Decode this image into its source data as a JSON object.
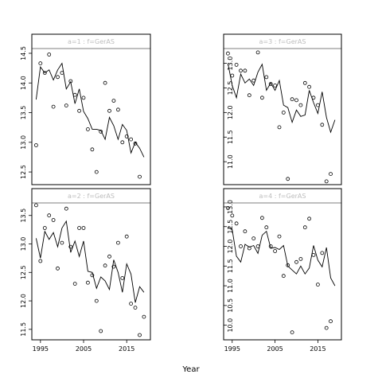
{
  "chart_data": {
    "type": "scatter",
    "xlabel": "Year",
    "x_ticks": [
      1995,
      2005,
      2015
    ],
    "xlim": [
      1993,
      2020.5
    ],
    "panels": [
      {
        "strip_label": "a=1  :  f=GerAS",
        "ylim": [
          12.3,
          14.58
        ],
        "y_ticks": [
          12.5,
          13.0,
          13.5,
          14.0,
          14.5
        ],
        "y_tick_labels": [
          "12.5",
          "13.0",
          "13.5",
          "14.0",
          "14.5"
        ],
        "points": [
          [
            1994,
            12.95
          ],
          [
            1995,
            14.33
          ],
          [
            1996,
            14.17
          ],
          [
            1997,
            14.48
          ],
          [
            1998,
            13.6
          ],
          [
            1999,
            14.1
          ],
          [
            2000,
            14.17
          ],
          [
            2001,
            13.62
          ],
          [
            2002,
            14.03
          ],
          [
            2003,
            13.8
          ],
          [
            2004,
            13.53
          ],
          [
            2005,
            13.75
          ],
          [
            2006,
            13.22
          ],
          [
            2007,
            12.88
          ],
          [
            2008,
            12.5
          ],
          [
            2009,
            13.18
          ],
          [
            2010,
            14.0
          ],
          [
            2011,
            13.53
          ],
          [
            2012,
            13.7
          ],
          [
            2013,
            13.55
          ],
          [
            2014,
            13.0
          ],
          [
            2015,
            13.1
          ],
          [
            2016,
            13.05
          ],
          [
            2017,
            12.98
          ],
          [
            2018,
            12.42
          ]
        ],
        "fitted": [
          [
            1994,
            13.72
          ],
          [
            1995,
            14.27
          ],
          [
            1996,
            14.17
          ],
          [
            1997,
            14.22
          ],
          [
            1998,
            14.05
          ],
          [
            1999,
            14.22
          ],
          [
            2000,
            14.33
          ],
          [
            2001,
            13.9
          ],
          [
            2002,
            14.02
          ],
          [
            2003,
            13.65
          ],
          [
            2004,
            13.9
          ],
          [
            2005,
            13.52
          ],
          [
            2006,
            13.4
          ],
          [
            2007,
            13.22
          ],
          [
            2008,
            13.22
          ],
          [
            2009,
            13.2
          ],
          [
            2010,
            13.05
          ],
          [
            2011,
            13.42
          ],
          [
            2012,
            13.28
          ],
          [
            2013,
            13.05
          ],
          [
            2014,
            13.3
          ],
          [
            2015,
            13.2
          ],
          [
            2016,
            12.82
          ],
          [
            2017,
            13.0
          ],
          [
            2018,
            12.9
          ],
          [
            2019,
            12.75
          ]
        ]
      },
      {
        "strip_label": "a=2  :  f=GerAS",
        "ylim": [
          11.33,
          13.72
        ],
        "y_ticks": [
          11.5,
          12.0,
          12.5,
          13.0,
          13.5
        ],
        "y_tick_labels": [
          "11.5",
          "12.0",
          "12.5",
          "13.0",
          "13.5"
        ],
        "points": [
          [
            1994,
            13.68
          ],
          [
            1995,
            12.7
          ],
          [
            1996,
            13.28
          ],
          [
            1997,
            13.5
          ],
          [
            1998,
            13.42
          ],
          [
            1999,
            12.57
          ],
          [
            2000,
            13.02
          ],
          [
            2001,
            13.62
          ],
          [
            2002,
            12.95
          ],
          [
            2003,
            12.3
          ],
          [
            2004,
            13.28
          ],
          [
            2005,
            13.28
          ],
          [
            2006,
            12.32
          ],
          [
            2007,
            12.45
          ],
          [
            2008,
            12.0
          ],
          [
            2009,
            11.47
          ],
          [
            2010,
            12.62
          ],
          [
            2011,
            12.78
          ],
          [
            2012,
            12.6
          ],
          [
            2013,
            13.02
          ],
          [
            2014,
            12.4
          ],
          [
            2015,
            13.13
          ],
          [
            2016,
            11.95
          ],
          [
            2017,
            11.88
          ],
          [
            2018,
            11.4
          ],
          [
            2019,
            11.72
          ]
        ],
        "fitted": [
          [
            1994,
            13.1
          ],
          [
            1995,
            12.75
          ],
          [
            1996,
            13.22
          ],
          [
            1997,
            13.08
          ],
          [
            1998,
            13.2
          ],
          [
            1999,
            12.95
          ],
          [
            2000,
            13.28
          ],
          [
            2001,
            13.4
          ],
          [
            2002,
            12.85
          ],
          [
            2003,
            13.05
          ],
          [
            2004,
            12.78
          ],
          [
            2005,
            13.05
          ],
          [
            2006,
            12.52
          ],
          [
            2007,
            12.5
          ],
          [
            2008,
            12.22
          ],
          [
            2009,
            12.42
          ],
          [
            2010,
            12.35
          ],
          [
            2011,
            12.2
          ],
          [
            2012,
            12.72
          ],
          [
            2013,
            12.5
          ],
          [
            2014,
            12.15
          ],
          [
            2015,
            12.65
          ],
          [
            2016,
            12.47
          ],
          [
            2017,
            11.97
          ],
          [
            2018,
            12.25
          ],
          [
            2019,
            12.15
          ]
        ]
      },
      {
        "strip_label": "a=3  :  f=GerAS",
        "ylim": [
          10.55,
          13.3
        ],
        "y_ticks": [
          11.0,
          11.5,
          12.0,
          12.5,
          13.0
        ],
        "y_tick_labels": [
          "11.0",
          "11.5",
          "12.0",
          "12.5",
          "13.0"
        ],
        "points": [
          [
            1994,
            13.2
          ],
          [
            1995,
            12.75
          ],
          [
            1996,
            12.97
          ],
          [
            1997,
            12.85
          ],
          [
            1998,
            12.85
          ],
          [
            1999,
            12.35
          ],
          [
            2000,
            12.65
          ],
          [
            2001,
            13.22
          ],
          [
            2002,
            12.3
          ],
          [
            2003,
            12.72
          ],
          [
            2004,
            12.58
          ],
          [
            2005,
            12.55
          ],
          [
            2006,
            11.7
          ],
          [
            2007,
            12.0
          ],
          [
            2008,
            10.65
          ],
          [
            2009,
            12.27
          ],
          [
            2010,
            12.25
          ],
          [
            2011,
            12.15
          ],
          [
            2012,
            12.6
          ],
          [
            2013,
            12.52
          ],
          [
            2014,
            12.3
          ],
          [
            2015,
            12.15
          ],
          [
            2016,
            11.75
          ],
          [
            2017,
            10.6
          ],
          [
            2018,
            10.75
          ]
        ],
        "fitted": [
          [
            1994,
            13.0
          ],
          [
            1995,
            12.55
          ],
          [
            1996,
            12.3
          ],
          [
            1997,
            12.78
          ],
          [
            1998,
            12.6
          ],
          [
            1999,
            12.68
          ],
          [
            2000,
            12.55
          ],
          [
            2001,
            12.82
          ],
          [
            2002,
            12.98
          ],
          [
            2003,
            12.45
          ],
          [
            2004,
            12.6
          ],
          [
            2005,
            12.45
          ],
          [
            2006,
            12.65
          ],
          [
            2007,
            12.15
          ],
          [
            2008,
            12.1
          ],
          [
            2009,
            11.8
          ],
          [
            2010,
            12.05
          ],
          [
            2011,
            11.92
          ],
          [
            2012,
            11.95
          ],
          [
            2013,
            12.45
          ],
          [
            2014,
            12.2
          ],
          [
            2015,
            11.98
          ],
          [
            2016,
            12.42
          ],
          [
            2017,
            11.9
          ],
          [
            2018,
            11.6
          ],
          [
            2019,
            11.85
          ]
        ]
      },
      {
        "strip_label": "a=4  :  f=GerAS",
        "ylim": [
          9.65,
          13.1
        ],
        "y_ticks": [
          10.0,
          10.5,
          11.0,
          11.5,
          12.0,
          12.5,
          13.0
        ],
        "y_tick_labels": [
          "10.0",
          "10.5",
          "11.0",
          "11.5",
          "12.0",
          "12.5",
          "13.0"
        ],
        "points": [
          [
            1994,
            12.97
          ],
          [
            1995,
            12.78
          ],
          [
            1996,
            12.58
          ],
          [
            1997,
            12.0
          ],
          [
            1998,
            12.38
          ],
          [
            1999,
            11.95
          ],
          [
            2000,
            12.2
          ],
          [
            2001,
            12.0
          ],
          [
            2002,
            12.72
          ],
          [
            2003,
            12.48
          ],
          [
            2004,
            12.0
          ],
          [
            2005,
            11.88
          ],
          [
            2006,
            12.25
          ],
          [
            2007,
            11.25
          ],
          [
            2008,
            11.52
          ],
          [
            2009,
            9.82
          ],
          [
            2010,
            11.6
          ],
          [
            2011,
            11.68
          ],
          [
            2012,
            12.48
          ],
          [
            2013,
            12.7
          ],
          [
            2014,
            11.78
          ],
          [
            2015,
            11.03
          ],
          [
            2016,
            11.83
          ],
          [
            2017,
            9.93
          ],
          [
            2018,
            10.1
          ]
        ],
        "fitted": [
          [
            1994,
            12.48
          ],
          [
            1995,
            12.42
          ],
          [
            1996,
            11.75
          ],
          [
            1997,
            11.6
          ],
          [
            1998,
            12.05
          ],
          [
            1999,
            11.98
          ],
          [
            2000,
            12.02
          ],
          [
            2001,
            11.82
          ],
          [
            2002,
            12.28
          ],
          [
            2003,
            12.38
          ],
          [
            2004,
            11.95
          ],
          [
            2005,
            11.97
          ],
          [
            2006,
            11.92
          ],
          [
            2007,
            12.02
          ],
          [
            2008,
            11.5
          ],
          [
            2009,
            11.4
          ],
          [
            2010,
            11.3
          ],
          [
            2011,
            11.5
          ],
          [
            2012,
            11.3
          ],
          [
            2013,
            11.45
          ],
          [
            2014,
            12.02
          ],
          [
            2015,
            11.65
          ],
          [
            2016,
            11.48
          ],
          [
            2017,
            11.97
          ],
          [
            2018,
            11.2
          ],
          [
            2019,
            11.0
          ]
        ]
      }
    ]
  }
}
